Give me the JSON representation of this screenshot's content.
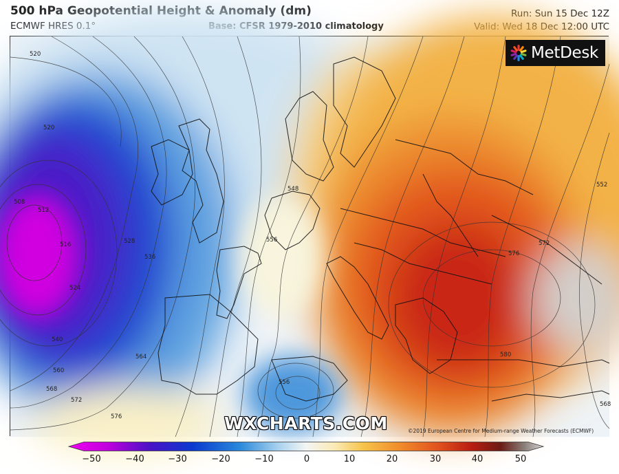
{
  "header": {
    "title": "500 hPa Geopotential Height & Anomaly (dm)",
    "model": "ECMWF HRES 0.1°",
    "base": "Base: CFSR 1979-2010 climatology",
    "run": "Run: Sun 15 Dec 12Z",
    "valid": "Valid: Wed 18 Dec 12:00 UTC"
  },
  "brand": {
    "name": "MetDesk"
  },
  "watermark": "WXCHARTS.COM",
  "copyright": "©2019 European Centre for Medium-range Weather Forecasts (ECMWF)",
  "contour_labels": [
    "520",
    "520",
    "508",
    "512",
    "516",
    "524",
    "528",
    "536",
    "540",
    "560",
    "564",
    "568",
    "572",
    "576",
    "548",
    "556",
    "556",
    "552",
    "572",
    "576",
    "580",
    "568"
  ],
  "colorbar": {
    "ticks": [
      "−50",
      "−40",
      "−30",
      "−20",
      "−10",
      "0",
      "10",
      "20",
      "30",
      "40",
      "50"
    ],
    "colors": [
      "#e600e6",
      "#9a00d0",
      "#3a0cc4",
      "#0a3ad0",
      "#1e7fd8",
      "#8ec3ea",
      "#e6f0f6",
      "#fbf1c0",
      "#f7c447",
      "#f08a2a",
      "#e0501e",
      "#c01e0e",
      "#7a1d14",
      "#5a4a44",
      "#c0bcb8"
    ]
  },
  "colors": {
    "deep_low": "#d000e0",
    "low": "#2a2ad0",
    "cool": "#9ec9ea",
    "neutral": "#f1f5f8",
    "warm": "#f5b54a",
    "hot": "#e0531c",
    "peak": "#b81c10"
  }
}
